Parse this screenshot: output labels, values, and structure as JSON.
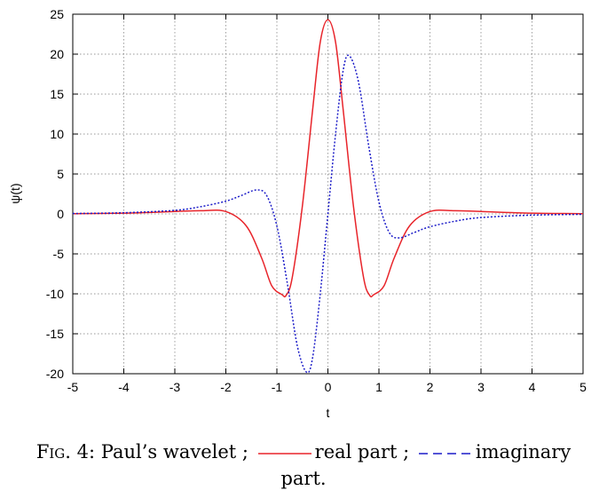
{
  "chart_data": {
    "type": "line",
    "title": "",
    "xlabel": "t",
    "ylabel": "ψ(t)",
    "xlim": [
      -5,
      5
    ],
    "ylim": [
      -20,
      25
    ],
    "grid": true,
    "x_ticks": [
      "-5",
      "-4",
      "-3",
      "-2",
      "-1",
      "0",
      "1",
      "2",
      "3",
      "4",
      "5"
    ],
    "y_ticks": [
      "-20",
      "-15",
      "-10",
      "-5",
      "0",
      "5",
      "10",
      "15",
      "20",
      "25"
    ],
    "series": [
      {
        "id": "real",
        "color": "#e8242a",
        "style": "solid",
        "x": [
          -5,
          -4,
          -3,
          -2.5,
          -2,
          -1.6,
          -1.3,
          -1.1,
          -0.9,
          -0.82,
          -0.7,
          -0.5,
          -0.3,
          -0.15,
          0,
          0.15,
          0.3,
          0.5,
          0.7,
          0.82,
          0.9,
          1.1,
          1.3,
          1.6,
          2,
          2.5,
          3,
          4,
          5
        ],
        "y": [
          0.03,
          0.1,
          0.3,
          0.4,
          0.3,
          -1.5,
          -5.5,
          -9.0,
          -10.1,
          -10.2,
          -8.0,
          1.0,
          13.0,
          21.5,
          24.3,
          21.5,
          13.0,
          1.0,
          -8.0,
          -10.2,
          -10.1,
          -9.0,
          -5.5,
          -1.5,
          0.3,
          0.4,
          0.3,
          0.1,
          0.03
        ]
      },
      {
        "id": "imaginary",
        "color": "#1c1cc8",
        "style": "dotted",
        "x": [
          -5,
          -4,
          -3,
          -2.5,
          -2,
          -1.7,
          -1.4,
          -1.2,
          -1.0,
          -0.8,
          -0.6,
          -0.42,
          -0.3,
          -0.15,
          0,
          0.15,
          0.3,
          0.42,
          0.6,
          0.8,
          1.0,
          1.2,
          1.4,
          1.7,
          2,
          2.5,
          3,
          4,
          5
        ],
        "y": [
          0.05,
          0.15,
          0.45,
          0.9,
          1.6,
          2.3,
          3.0,
          2.3,
          -1.5,
          -8.5,
          -16.5,
          -19.8,
          -18.0,
          -10.0,
          0,
          10.0,
          18.0,
          19.8,
          16.5,
          8.5,
          1.5,
          -2.3,
          -3.0,
          -2.3,
          -1.6,
          -0.9,
          -0.45,
          -0.15,
          -0.05
        ]
      }
    ]
  },
  "caption": {
    "fig_label": "Fig. 4:",
    "text_before": "Paul’s wavelet ;",
    "legend_real": "real part ;",
    "legend_imag": "imaginary",
    "text_wrap": "part."
  }
}
